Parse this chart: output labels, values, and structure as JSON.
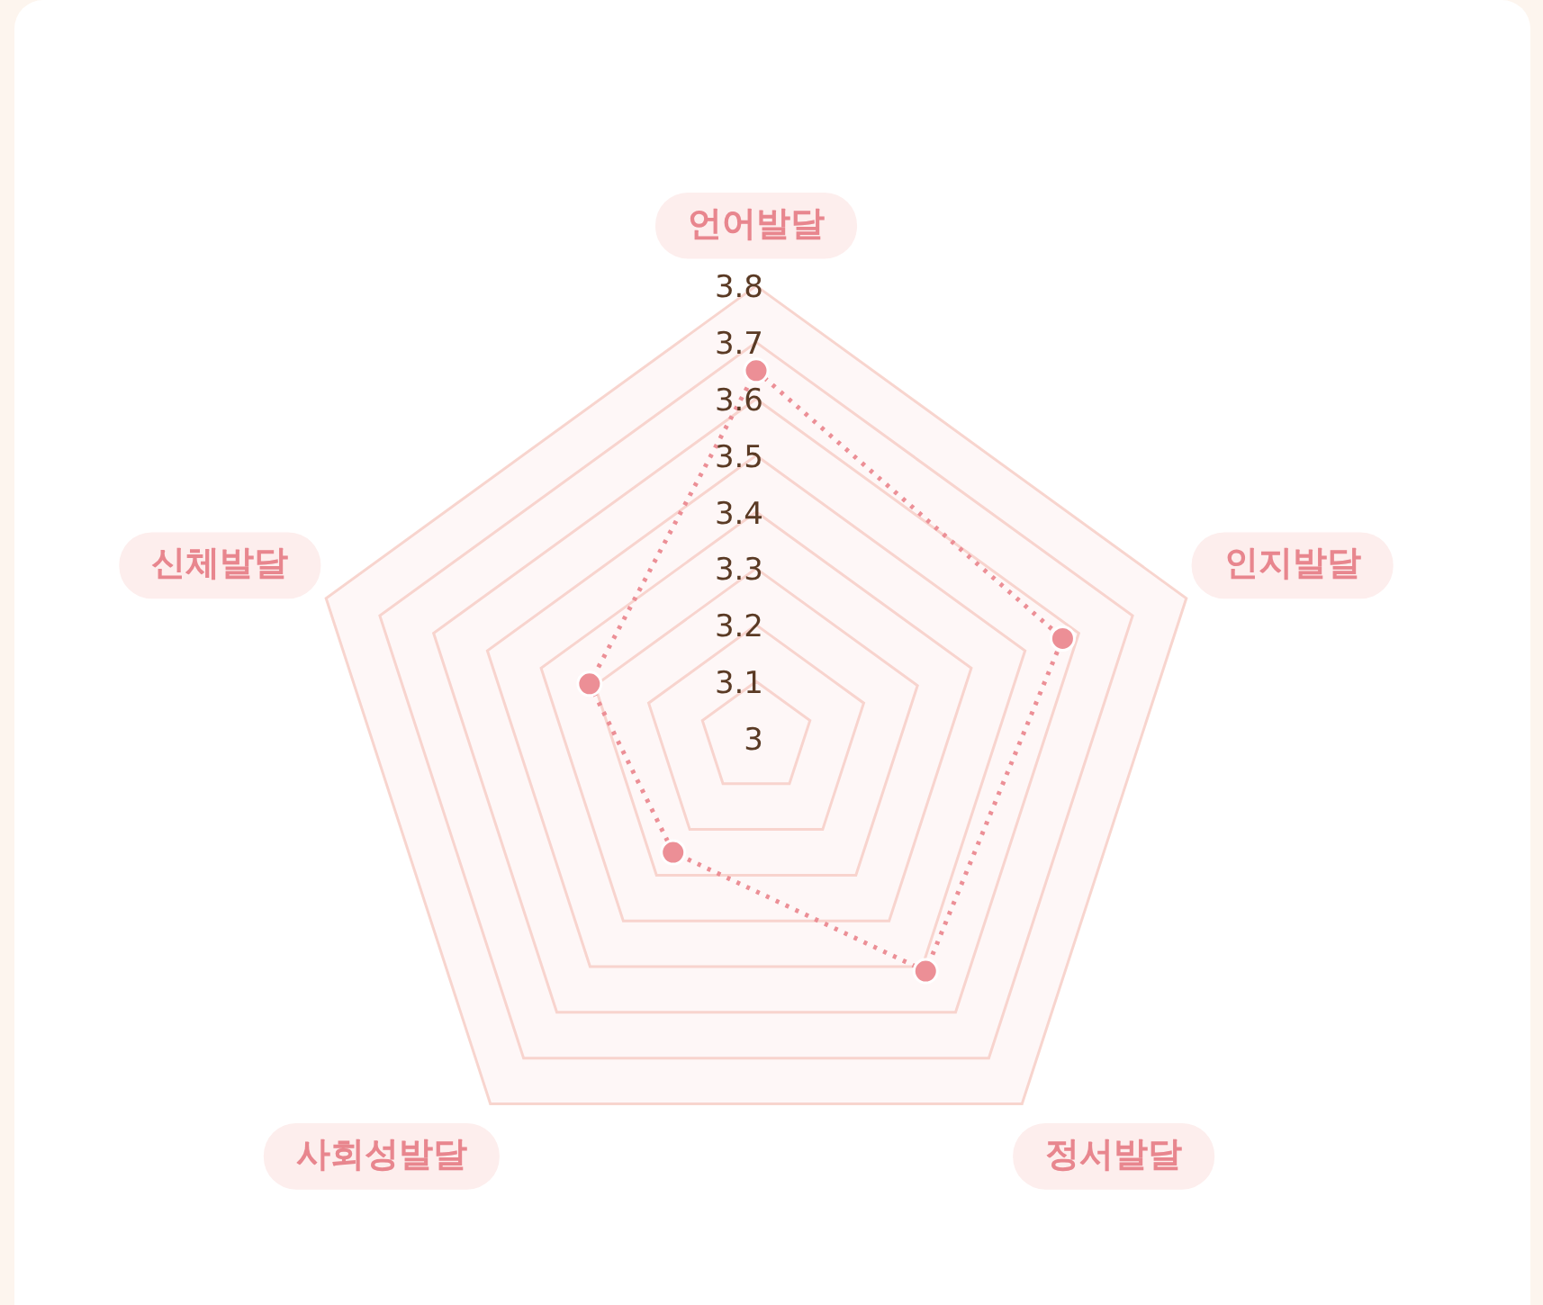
{
  "chart_data": {
    "type": "radar",
    "categories": [
      "언어발달",
      "인지발달",
      "정서발달",
      "사회성발달",
      "신체발달"
    ],
    "series": [
      {
        "color": "#ec8f96",
        "values": [
          3.65,
          3.57,
          3.51,
          3.25,
          3.31
        ]
      }
    ],
    "ylim": [
      3,
      3.8
    ],
    "yticks": [
      3,
      3.1,
      3.2,
      3.3,
      3.4,
      3.5,
      3.6,
      3.7,
      3.8
    ],
    "grid": true,
    "marker": "circle",
    "line_style": "dotted"
  }
}
